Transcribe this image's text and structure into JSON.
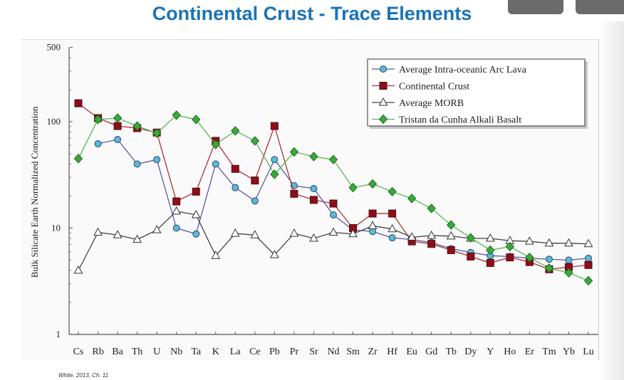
{
  "slide": {
    "title": "Continental Crust - Trace Elements",
    "source": "White, 2013, Ch. 11"
  },
  "chart_data": {
    "type": "line",
    "title": "",
    "xlabel": "",
    "ylabel": "Bulk Silicate Earth Normalized Concentration",
    "yscale": "log",
    "ylim": [
      1,
      500
    ],
    "yticks": [
      "1",
      "10",
      "100",
      "500"
    ],
    "legend": "top-right",
    "grid": false,
    "categories": [
      "Cs",
      "Rb",
      "Ba",
      "Th",
      "U",
      "Nb",
      "Ta",
      "K",
      "La",
      "Ce",
      "Pb",
      "Pr",
      "Sr",
      "Nd",
      "Sm",
      "Zr",
      "Hf",
      "Eu",
      "Gd",
      "Tb",
      "Dy",
      "Y",
      "Ho",
      "Er",
      "Tm",
      "Yb",
      "Lu"
    ],
    "series": [
      {
        "name": "Average Intra-oceanic Arc Lava",
        "marker": "circle",
        "color": "#5a5aa8",
        "fill": "#5bb8d8",
        "values": [
          null,
          62,
          68,
          40,
          44,
          10,
          8.8,
          40,
          24,
          18,
          44,
          25,
          23.5,
          13.3,
          9.6,
          9.3,
          8.1,
          7.8,
          7.3,
          6.4,
          5.9,
          5.5,
          5.4,
          5.2,
          5.1,
          5.0,
          5.2
        ]
      },
      {
        "name": "Continental Crust",
        "marker": "square",
        "color": "#b0303a",
        "fill": "#8b0f1a",
        "values": [
          149,
          108,
          91,
          87,
          79,
          17.8,
          22,
          66,
          36,
          28,
          91,
          21,
          18.4,
          17,
          10,
          13.7,
          13.7,
          7.5,
          7.1,
          6.2,
          5.4,
          4.7,
          5.3,
          4.8,
          4.1,
          4.3,
          4.5
        ]
      },
      {
        "name": "Average MORB",
        "marker": "triangle",
        "color": "#444444",
        "fill": "#ffffff",
        "values": [
          4.0,
          9.1,
          8.6,
          7.8,
          9.6,
          14.4,
          13.3,
          5.5,
          8.9,
          8.6,
          5.6,
          8.9,
          8.0,
          9.1,
          8.8,
          10.5,
          9.8,
          8.2,
          8.5,
          8.4,
          8.0,
          8.0,
          7.6,
          7.5,
          7.2,
          7.2,
          7.1
        ]
      },
      {
        "name": "Tristan da Cunha Alkali Basalt",
        "marker": "diamond",
        "color": "#55b855",
        "fill": "#3aa83a",
        "values": [
          45,
          105,
          108,
          91,
          78,
          115,
          105,
          61,
          82,
          66,
          32,
          52,
          47,
          44,
          24,
          26,
          22,
          19,
          15.3,
          10.7,
          8.1,
          6.2,
          6.7,
          5.3,
          4.2,
          3.8,
          3.2
        ]
      }
    ]
  }
}
